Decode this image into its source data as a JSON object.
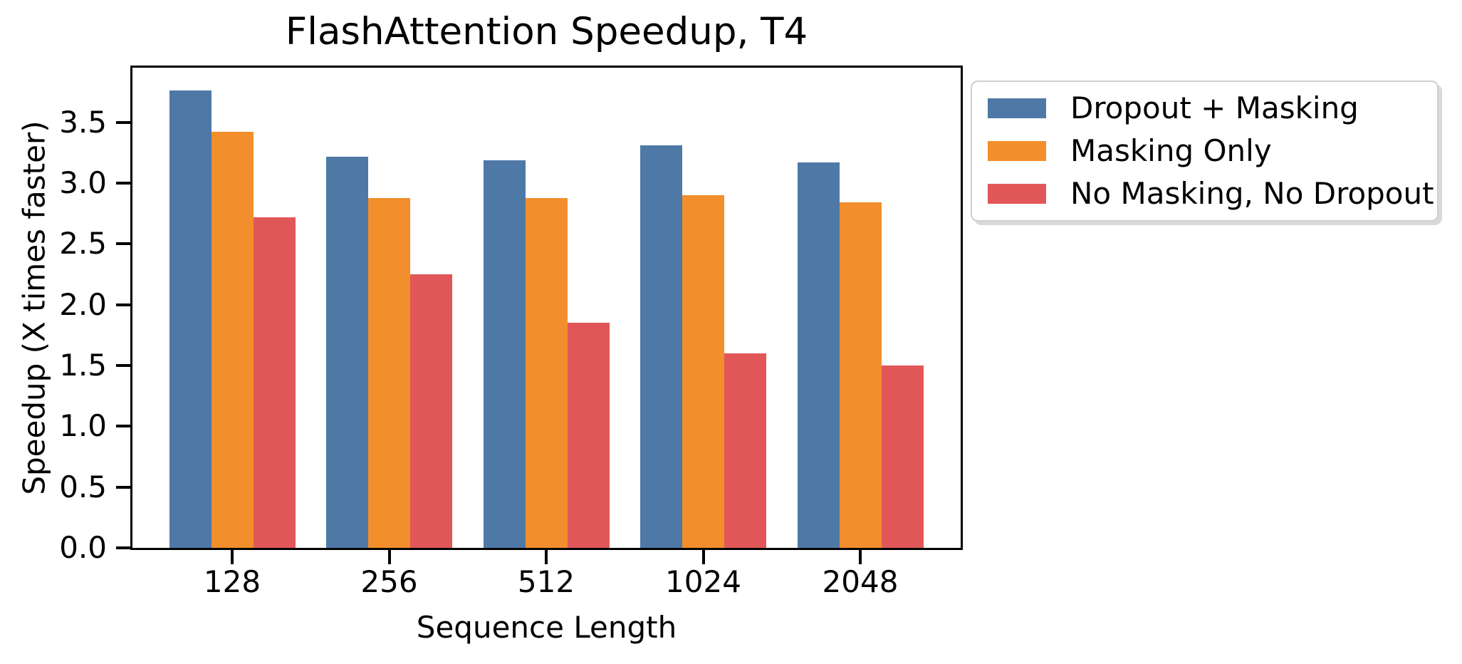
{
  "chart_data": {
    "type": "bar",
    "title": "FlashAttention Speedup, T4",
    "xlabel": "Sequence Length",
    "ylabel": "Speedup (X times faster)",
    "categories": [
      "128",
      "256",
      "512",
      "1024",
      "2048"
    ],
    "series": [
      {
        "name": "Dropout + Masking",
        "color": "#4e79a7",
        "values": [
          3.76,
          3.22,
          3.19,
          3.31,
          3.17
        ]
      },
      {
        "name": "Masking Only",
        "color": "#f28e2b",
        "values": [
          3.42,
          2.88,
          2.88,
          2.9,
          2.84
        ]
      },
      {
        "name": "No Masking, No Dropout",
        "color": "#e15759",
        "values": [
          2.72,
          2.25,
          1.85,
          1.6,
          1.5
        ]
      }
    ],
    "y_tick_labels": [
      "0.0",
      "0.5",
      "1.0",
      "1.5",
      "2.0",
      "2.5",
      "3.0",
      "3.5"
    ],
    "ylim": [
      0,
      3.95
    ],
    "grid": false,
    "legend_position": "outside-right",
    "axis_color": "#000000",
    "background_color": "#ffffff"
  }
}
